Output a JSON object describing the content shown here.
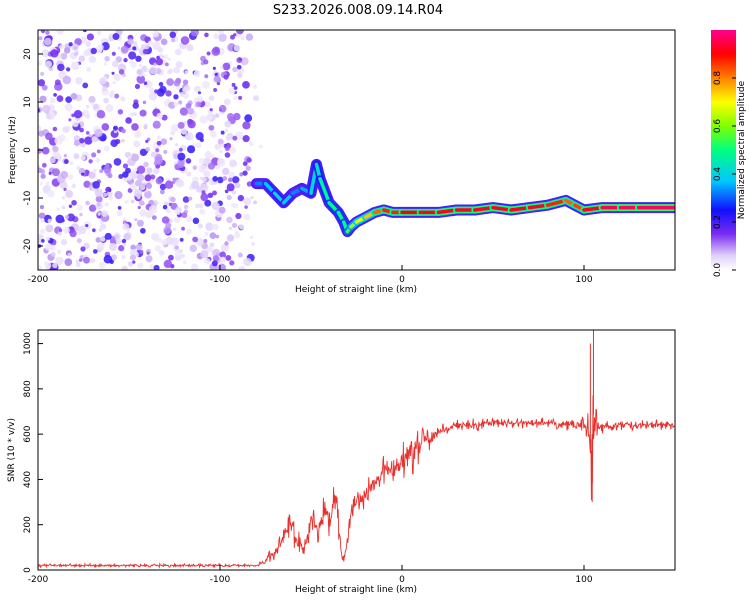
{
  "title": "S233.2026.008.09.14.R04",
  "chart_data": [
    {
      "type": "heatmap",
      "name": "spectrogram",
      "xlabel": "Height of straight line (km)",
      "ylabel": "Frequency (Hz)",
      "xlim": [
        -200,
        150
      ],
      "ylim": [
        -25,
        25
      ],
      "xticks": [
        "-200",
        "-100",
        "0",
        "100"
      ],
      "yticks": [
        "20",
        "10",
        "0",
        "-10",
        "-20"
      ],
      "colorbar": {
        "label": "Normalized spectral amplitude",
        "range": [
          0.0,
          1.0
        ],
        "ticks": [
          "0.0",
          "0.2",
          "0.4",
          "0.6",
          "0.8"
        ],
        "colors": [
          "#ffffff",
          "#d8c8f8",
          "#7a2cf0",
          "#1010ff",
          "#00c8ff",
          "#00ff80",
          "#80ff00",
          "#ffff00",
          "#ff8000",
          "#ff0000",
          "#ff0090"
        ]
      },
      "noise_region": {
        "x": [
          -200,
          -75
        ],
        "freq": [
          -25,
          25
        ],
        "amplitude": 0.12
      },
      "trace": {
        "x": [
          -80,
          -75,
          -70,
          -65,
          -60,
          -55,
          -50,
          -47,
          -45,
          -40,
          -35,
          -32,
          -30,
          -28,
          -25,
          -20,
          -15,
          -10,
          -5,
          0,
          10,
          20,
          30,
          40,
          50,
          60,
          70,
          80,
          90,
          95,
          100,
          110,
          120,
          130,
          150
        ],
        "freq": [
          -7,
          -7,
          -9,
          -11,
          -9,
          -8,
          -9,
          -3,
          -6,
          -11,
          -13,
          -15,
          -17,
          -16,
          -15,
          -14,
          -13,
          -12.5,
          -13,
          -13,
          -13,
          -13,
          -12.5,
          -12.5,
          -12,
          -12.5,
          -12,
          -11.5,
          -10.5,
          -11.5,
          -12.5,
          -12,
          -12,
          -12,
          -12
        ],
        "amplitude": [
          0.3,
          0.35,
          0.4,
          0.4,
          0.35,
          0.3,
          0.4,
          0.4,
          0.45,
          0.5,
          0.5,
          0.5,
          0.5,
          0.6,
          0.65,
          0.7,
          0.8,
          0.85,
          0.9,
          0.85,
          0.95,
          0.9,
          0.95,
          0.9,
          0.95,
          0.9,
          0.95,
          0.9,
          0.85,
          0.8,
          0.9,
          0.95,
          0.97,
          0.97,
          0.97
        ]
      }
    },
    {
      "type": "line",
      "name": "snr",
      "xlabel": "Height of straight line (km)",
      "ylabel": "SNR (10 * v/v)",
      "xlim": [
        -200,
        150
      ],
      "ylim": [
        0,
        1060
      ],
      "xticks": [
        "-200",
        "-100",
        "0",
        "100"
      ],
      "yticks": [
        "0",
        "200",
        "400",
        "600",
        "800",
        "1000"
      ],
      "color": "#e8302c",
      "envelope": {
        "x": [
          -200,
          -80,
          -75,
          -70,
          -66,
          -62,
          -60,
          -58,
          -55,
          -52,
          -50,
          -48,
          -46,
          -44,
          -42,
          -40,
          -38,
          -36,
          -35,
          -34,
          -33,
          -32,
          -30,
          -28,
          -25,
          -22,
          -20,
          -18,
          -15,
          -12,
          -10,
          -8,
          -5,
          -2,
          0,
          3,
          5,
          8,
          10,
          13,
          15,
          18,
          20,
          23,
          25,
          30,
          35,
          40,
          50,
          60,
          70,
          80,
          90,
          95,
          100,
          102,
          103,
          104,
          105,
          106,
          108,
          110,
          120,
          130,
          140,
          150
        ],
        "mean": [
          20,
          20,
          40,
          80,
          120,
          200,
          170,
          140,
          110,
          130,
          230,
          210,
          160,
          230,
          260,
          200,
          280,
          320,
          240,
          130,
          60,
          40,
          120,
          260,
          300,
          320,
          340,
          360,
          380,
          400,
          440,
          460,
          450,
          470,
          480,
          510,
          530,
          540,
          560,
          580,
          560,
          600,
          610,
          620,
          620,
          640,
          640,
          640,
          650,
          650,
          650,
          650,
          640,
          640,
          640,
          630,
          600,
          500,
          700,
          640,
          630,
          630,
          640,
          640,
          640,
          640
        ],
        "amp": [
          8,
          8,
          20,
          40,
          60,
          80,
          70,
          60,
          50,
          60,
          90,
          70,
          60,
          80,
          90,
          70,
          80,
          100,
          90,
          60,
          30,
          20,
          50,
          60,
          70,
          60,
          70,
          60,
          60,
          60,
          90,
          100,
          70,
          100,
          110,
          70,
          140,
          90,
          100,
          60,
          60,
          40,
          30,
          30,
          30,
          25,
          30,
          30,
          25,
          25,
          25,
          25,
          25,
          30,
          40,
          80,
          300,
          300,
          300,
          150,
          40,
          30,
          25,
          25,
          25,
          25
        ]
      },
      "spikes": [
        {
          "x": 103.5,
          "y": 1000
        },
        {
          "x": 104.5,
          "y": 300
        },
        {
          "x": 105.2,
          "y": 1060
        }
      ]
    }
  ]
}
